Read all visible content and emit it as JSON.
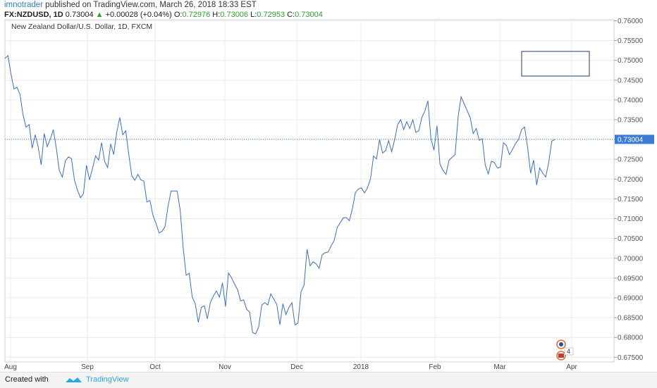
{
  "header": {
    "author": "imnotrader",
    "published": "published on TradingView.com, March 26, 2018 18:33 EST",
    "symbol": "FX:NZDUSD, 1D",
    "price": "0.73004",
    "change": "+0.00028 (+0.04%)",
    "o_label": "O:",
    "o_value": "0.72976",
    "h_label": "H:",
    "h_value": "0.73006",
    "l_label": "L:",
    "l_value": "0.72953",
    "c_label": "C:",
    "c_value": "0.73004"
  },
  "footer": {
    "created": "Created with",
    "brand": "TradingView"
  },
  "colors": {
    "line": "#3a6fc4",
    "last_price_bg": "#3a7bd5",
    "grid": "#e6e6e6",
    "up": "#2ea02e"
  },
  "chart_data": {
    "type": "line",
    "title": "New Zealand Dollar/U.S. Dollar, 1D, FXCM",
    "x_labels": [
      "Aug",
      "Sep",
      "Oct",
      "Nov",
      "Dec",
      "2018",
      "Feb",
      "Mar",
      "Apr"
    ],
    "y_ticks": [
      "0.76000",
      "0.75500",
      "0.75000",
      "0.74500",
      "0.74000",
      "0.73500",
      "0.73000",
      "0.72500",
      "0.72000",
      "0.71500",
      "0.71000",
      "0.70500",
      "0.70000",
      "0.69500",
      "0.69000",
      "0.68500",
      "0.68000",
      "0.67500"
    ],
    "ylim": [
      0.6745,
      0.7605
    ],
    "last_price": "0.73004",
    "last_price_value": 0.73004,
    "grid": true,
    "series": [
      {
        "values": [
          0.7505,
          0.7512,
          0.7465,
          0.7428,
          0.7432,
          0.7414,
          0.7362,
          0.7331,
          0.7338,
          0.7278,
          0.7312,
          0.7282,
          0.7236,
          0.7315,
          0.7282,
          0.7301,
          0.7325,
          0.7278,
          0.7222,
          0.7205,
          0.7246,
          0.7256,
          0.7252,
          0.7198,
          0.7172,
          0.7153,
          0.7163,
          0.7235,
          0.7198,
          0.7228,
          0.7259,
          0.7248,
          0.7292,
          0.7245,
          0.7229,
          0.7289,
          0.7262,
          0.7318,
          0.7356,
          0.7312,
          0.7322,
          0.7262,
          0.7208,
          0.7197,
          0.7212,
          0.7198,
          0.7195,
          0.7142,
          0.7146,
          0.7108,
          0.7088,
          0.7064,
          0.7068,
          0.708,
          0.7132,
          0.717,
          0.717,
          0.717,
          0.7122,
          0.7025,
          0.6957,
          0.6962,
          0.6902,
          0.6885,
          0.6838,
          0.6876,
          0.688,
          0.6847,
          0.6888,
          0.6905,
          0.6917,
          0.6902,
          0.6938,
          0.6878,
          0.6963,
          0.6951,
          0.6935,
          0.6921,
          0.6892,
          0.6895,
          0.6871,
          0.6864,
          0.6812,
          0.6809,
          0.6827,
          0.6882,
          0.6888,
          0.6882,
          0.691,
          0.6897,
          0.6883,
          0.6832,
          0.6885,
          0.6858,
          0.6876,
          0.6888,
          0.6832,
          0.6836,
          0.6915,
          0.6932,
          0.7023,
          0.6981,
          0.6991,
          0.6986,
          0.6975,
          0.7009,
          0.7014,
          0.7016,
          0.7032,
          0.7045,
          0.7078,
          0.709,
          0.7102,
          0.7103,
          0.7095,
          0.7125,
          0.7166,
          0.7175,
          0.7178,
          0.7165,
          0.7178,
          0.7201,
          0.7258,
          0.7251,
          0.73,
          0.7266,
          0.7272,
          0.7297,
          0.7269,
          0.73,
          0.7338,
          0.735,
          0.7325,
          0.7345,
          0.7328,
          0.735,
          0.7318,
          0.7322,
          0.7356,
          0.7372,
          0.7398,
          0.7302,
          0.7273,
          0.7335,
          0.7238,
          0.7222,
          0.7212,
          0.7248,
          0.7255,
          0.7262,
          0.7358,
          0.7408,
          0.739,
          0.7373,
          0.7355,
          0.7315,
          0.7328,
          0.7298,
          0.7302,
          0.7235,
          0.7213,
          0.7245,
          0.7242,
          0.7228,
          0.723,
          0.7292,
          0.7285,
          0.7262,
          0.7275,
          0.729,
          0.73,
          0.7325,
          0.7332,
          0.7281,
          0.7215,
          0.7248,
          0.7185,
          0.7228,
          0.7215,
          0.7205,
          0.7242,
          0.7296,
          0.73
        ]
      }
    ]
  }
}
